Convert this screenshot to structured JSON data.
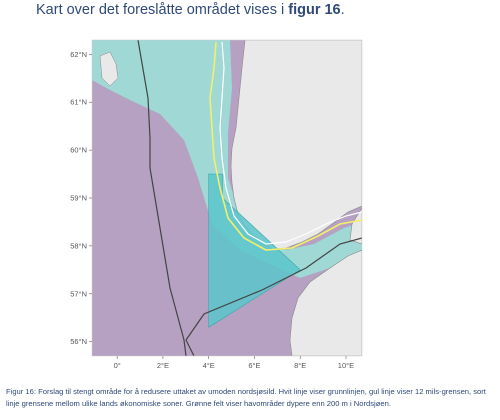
{
  "intro": {
    "text_before": "Kart over det foreslåtte området vises i ",
    "figure_ref": "figur 16",
    "text_after": "."
  },
  "map": {
    "lon_range": [
      -1.1,
      10.7
    ],
    "lat_range": [
      55.7,
      62.3
    ],
    "x_ticks": [
      {
        "value": 0,
        "label": "0°"
      },
      {
        "value": 2,
        "label": "2°E"
      },
      {
        "value": 4,
        "label": "4°E"
      },
      {
        "value": 6,
        "label": "6°E"
      },
      {
        "value": 8,
        "label": "8°E"
      },
      {
        "value": 10,
        "label": "10°E"
      }
    ],
    "y_ticks": [
      {
        "value": 62,
        "label": "62°N"
      },
      {
        "value": 61,
        "label": "61°N"
      },
      {
        "value": 60,
        "label": "60°N"
      },
      {
        "value": 59,
        "label": "59°N"
      },
      {
        "value": 58,
        "label": "58°N"
      },
      {
        "value": 57,
        "label": "57°N"
      },
      {
        "value": 56,
        "label": "56°N"
      }
    ],
    "colors": {
      "panel": "#ececec",
      "land": "#e9e9e9",
      "sea_shallow": "#b6a1c2",
      "sea_deep": "#9fd8d5",
      "proposed_area": "#5bc6cb",
      "baseline": "#ffffff",
      "twelve_mile_line": "#f3ef6a",
      "eez_border": "#444444",
      "coast": "#8a8a8a"
    },
    "proposed_area_polygon": [
      [
        4.0,
        59.5
      ],
      [
        4.6,
        59.5
      ],
      [
        4.6,
        59.0
      ],
      [
        8.0,
        57.5
      ],
      [
        4.0,
        56.3
      ]
    ]
  },
  "caption": "Figur 16: Forslag til stengt område for å redusere uttaket av umoden nordsjøsild. Hvit linje viser grunnlinjen, gul linje viser 12 mils-grensen, sort linje grensene mellom ulike lands økonomiske soner. Grønne felt viser havområder dypere enn 200 m i Nordsjøen."
}
